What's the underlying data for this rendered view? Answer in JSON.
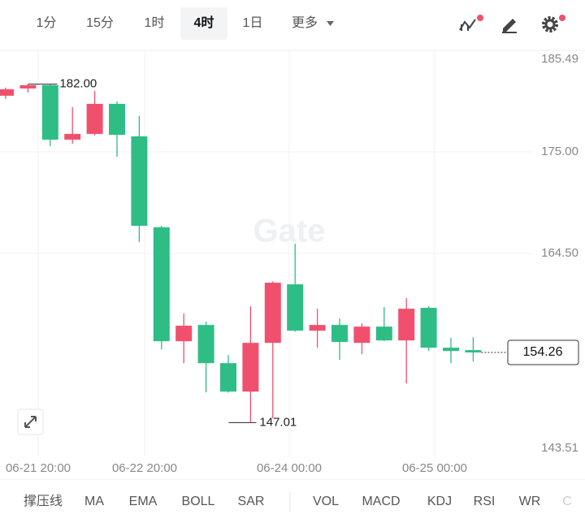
{
  "toolbar": {
    "intervals": [
      "1分",
      "15分",
      "1时",
      "4时",
      "1日"
    ],
    "selected": 3,
    "more": "更多"
  },
  "chart_data": {
    "type": "candlestick",
    "watermark": "Gate",
    "open": [
      180.8,
      181.55,
      181.89,
      176.26,
      176.85,
      179.96,
      176.6,
      167.2,
      155.42,
      157.1,
      153.15,
      150.21,
      155.25,
      161.3,
      156.51,
      157.1,
      155.25,
      156.93,
      155.5,
      158.87,
      154.75,
      154.5
    ],
    "high": [
      181.64,
      182.0,
      181.95,
      179.62,
      181.3,
      180.21,
      178.7,
      167.35,
      158.28,
      157.44,
      153.99,
      159.03,
      161.6,
      165.5,
      158.78,
      157.77,
      157.27,
      158.95,
      159.87,
      159.03,
      155.76,
      155.84
    ],
    "low": [
      180.46,
      181.13,
      175.59,
      175.84,
      176.7,
      174.5,
      165.67,
      154.58,
      153.15,
      150.13,
      150.1,
      147.01,
      147.44,
      156.4,
      154.75,
      153.49,
      154.08,
      155.42,
      151.05,
      154.41,
      153.15,
      153.32
    ],
    "close": [
      181.47,
      181.89,
      176.26,
      176.85,
      179.96,
      176.76,
      167.35,
      155.42,
      157.02,
      153.15,
      150.21,
      155.25,
      161.47,
      156.51,
      157.1,
      155.34,
      156.93,
      155.5,
      158.78,
      154.75,
      154.41,
      154.26
    ],
    "up_color": "#f0506e",
    "down_color": "#2ebd85",
    "ylim": [
      143.51,
      185.49
    ],
    "yticks": [
      143.51,
      {
        "value": 164.5,
        "label": "164.50"
      },
      {
        "value": 175,
        "label": "175.00"
      },
      185.49
    ],
    "xticks": [
      "06-21 20:00",
      "06-22 20:00",
      "06-24 00:00",
      "06-25 00:00"
    ],
    "grid": true,
    "high_marker": {
      "value": 182,
      "label": "182.00",
      "index": 1
    },
    "low_marker": {
      "value": 147.01,
      "label": "147.01",
      "index": 11
    },
    "last_price": {
      "value": 154.26,
      "label": "154.26"
    }
  },
  "indicators": [
    "撑压线",
    "MA",
    "EMA",
    "BOLL",
    "SAR",
    "VOL",
    "MACD",
    "KDJ",
    "RSI",
    "WR",
    "C"
  ]
}
